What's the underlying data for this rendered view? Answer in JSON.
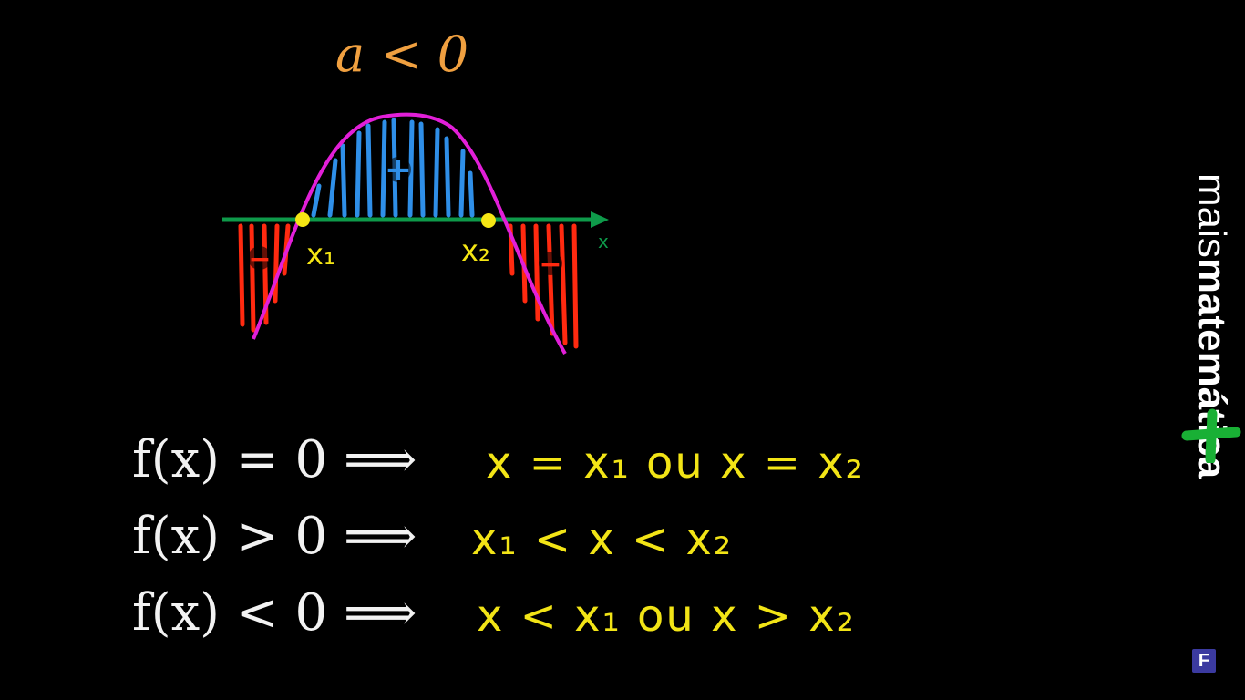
{
  "title": "a < 0",
  "diagram": {
    "axis_label": "x",
    "root1_label": "x₁",
    "root2_label": "x₂",
    "positive_sign": "+",
    "negative_sign_left": "−",
    "negative_sign_right": "−",
    "colors": {
      "curve": "#e21fd8",
      "axis": "#0e9a4a",
      "positive_fill": "#2f8fe8",
      "negative_fill": "#ff2a10",
      "roots": "#f5e614"
    }
  },
  "equations": [
    {
      "lhs": "f(x) = 0  ⟹",
      "condition": "x = x₁  ou  x = x₂"
    },
    {
      "lhs": "f(x) > 0  ⟹",
      "condition": "x₁ < x < x₂"
    },
    {
      "lhs": "f(x) < 0  ⟹",
      "condition": "x < x₁  ou  x > x₂"
    }
  ],
  "brand": {
    "prefix": "mais",
    "name": "matemática"
  },
  "corner_badge": "F"
}
